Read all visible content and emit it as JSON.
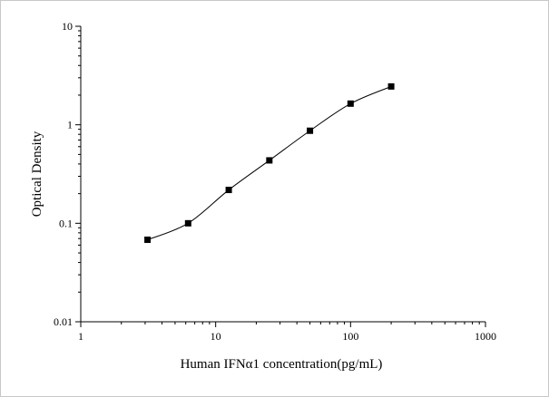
{
  "chart_data": {
    "type": "line",
    "title": "",
    "xlabel": "Human IFNα1 concentration(pg/mL)",
    "ylabel": "Optical Density",
    "x_scale": "log",
    "y_scale": "log",
    "xlim": [
      1,
      1000
    ],
    "ylim": [
      0.01,
      10
    ],
    "x_ticks": [
      1,
      10,
      100,
      1000
    ],
    "x_tick_labels": [
      "1",
      "10",
      "100",
      "1000"
    ],
    "y_ticks": [
      0.01,
      0.1,
      1,
      10
    ],
    "y_tick_labels": [
      "0.01",
      "0.1",
      "1",
      "10"
    ],
    "grid": false,
    "legend": "none",
    "series": [
      {
        "marker": "square",
        "color": "#000000",
        "x": [
          3.125,
          6.25,
          12.5,
          25,
          50,
          100,
          200
        ],
        "y": [
          0.068,
          0.1,
          0.218,
          0.435,
          0.87,
          1.64,
          2.45
        ]
      }
    ]
  }
}
